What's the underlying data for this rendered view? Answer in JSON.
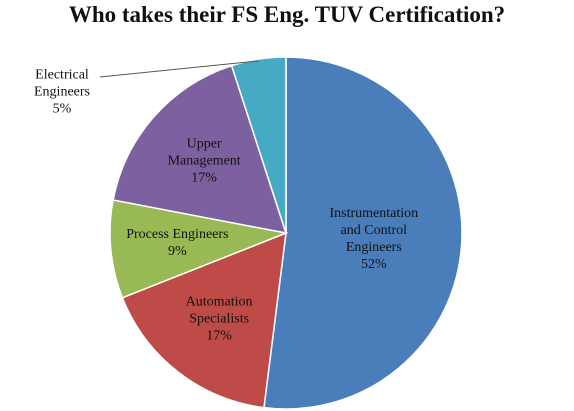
{
  "chart_data": {
    "type": "pie",
    "title": "Who takes their FS Eng. TUV Certification?",
    "categories": [
      "Instrumentation\nand Control\nEngineers",
      "Automation\nSpecialists",
      "Process Engineers",
      "Upper\nManagement",
      "Electrical\nEngineers"
    ],
    "values": [
      52,
      17,
      9,
      17,
      5
    ],
    "value_labels": [
      "52%",
      "17%",
      "9%",
      "17%",
      "5%"
    ],
    "colors": [
      "#4a7ebb",
      "#be4b48",
      "#98b954",
      "#7d60a0",
      "#46aac5"
    ]
  }
}
